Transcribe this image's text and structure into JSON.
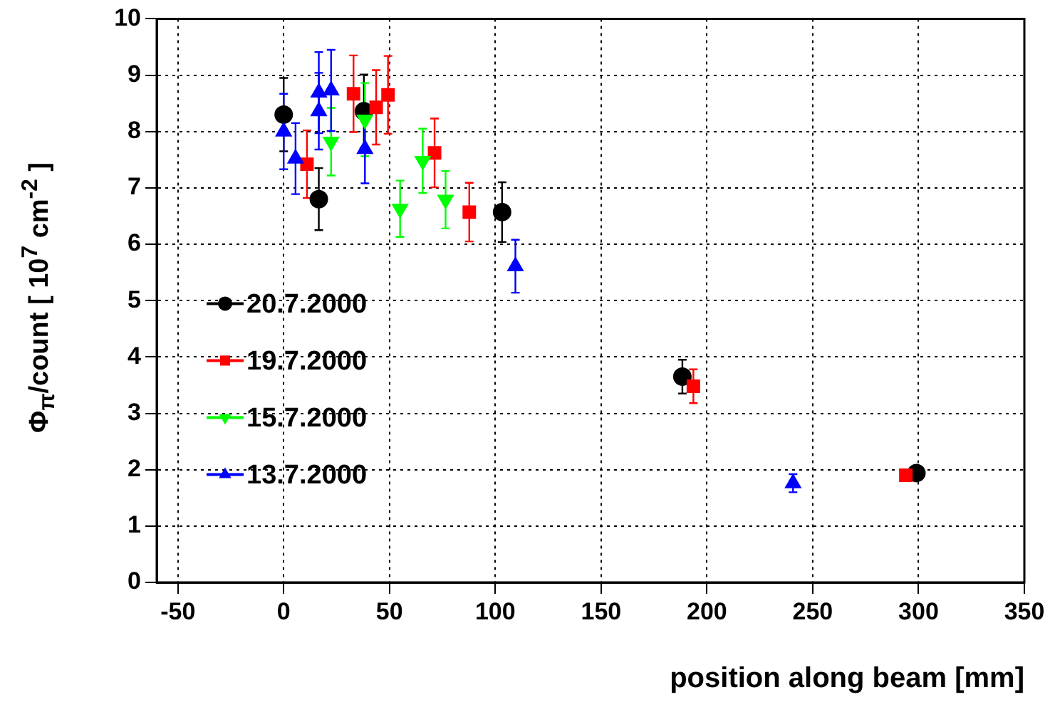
{
  "chart_data": {
    "type": "scatter",
    "xlabel": "position along beam [mm]",
    "ylabel": "Φ$_{π}$/count [ 10$^{7}$ cm$^{-2}$ ]",
    "xlim": [
      -60,
      350
    ],
    "xticks": [
      -50,
      0,
      50,
      100,
      150,
      200,
      250,
      300,
      350
    ],
    "ylim": [
      0,
      10
    ],
    "yticks": [
      0,
      1,
      2,
      3,
      4,
      5,
      6,
      7,
      8,
      9,
      10
    ],
    "grid": true,
    "legend": "left",
    "series": [
      {
        "name": "20.7.2000",
        "color": "#000000",
        "marker": "circle",
        "x": [
          0,
          16.6,
          37.9,
          103.2,
          188.4,
          299
        ],
        "values": [
          8.3,
          6.8,
          8.36,
          6.57,
          3.65,
          1.94
        ],
        "errors": [
          0.65,
          0.55,
          0.65,
          0.53,
          0.3,
          null
        ]
      },
      {
        "name": "19.7.2000",
        "color": "#ff0000",
        "marker": "square",
        "x": [
          11,
          33,
          43.7,
          49.3,
          71.3,
          87.7,
          193.6,
          294
        ],
        "values": [
          7.42,
          8.67,
          8.43,
          8.65,
          7.62,
          6.57,
          3.48,
          1.9
        ],
        "errors": [
          0.6,
          0.68,
          0.66,
          0.69,
          0.61,
          0.52,
          0.3,
          null
        ]
      },
      {
        "name": "15.7.2000",
        "color": "#00ff00",
        "marker": "triangle-down",
        "x": [
          22.4,
          38.4,
          55,
          65.7,
          76.5
        ],
        "values": [
          7.82,
          8.21,
          6.63,
          7.48,
          6.79
        ],
        "errors": [
          0.6,
          0.65,
          0.5,
          0.57,
          0.51
        ]
      },
      {
        "name": "13.7.2000",
        "color": "#0000ff",
        "marker": "triangle",
        "x": [
          0,
          5.6,
          16.6,
          16.6,
          22.4,
          38.4,
          109.5,
          240.7
        ],
        "values": [
          8.0,
          7.52,
          8.36,
          8.69,
          8.73,
          7.69,
          5.61,
          1.76
        ],
        "errors": [
          0.67,
          0.63,
          0.68,
          0.72,
          0.72,
          0.61,
          0.47,
          0.16
        ]
      }
    ]
  }
}
